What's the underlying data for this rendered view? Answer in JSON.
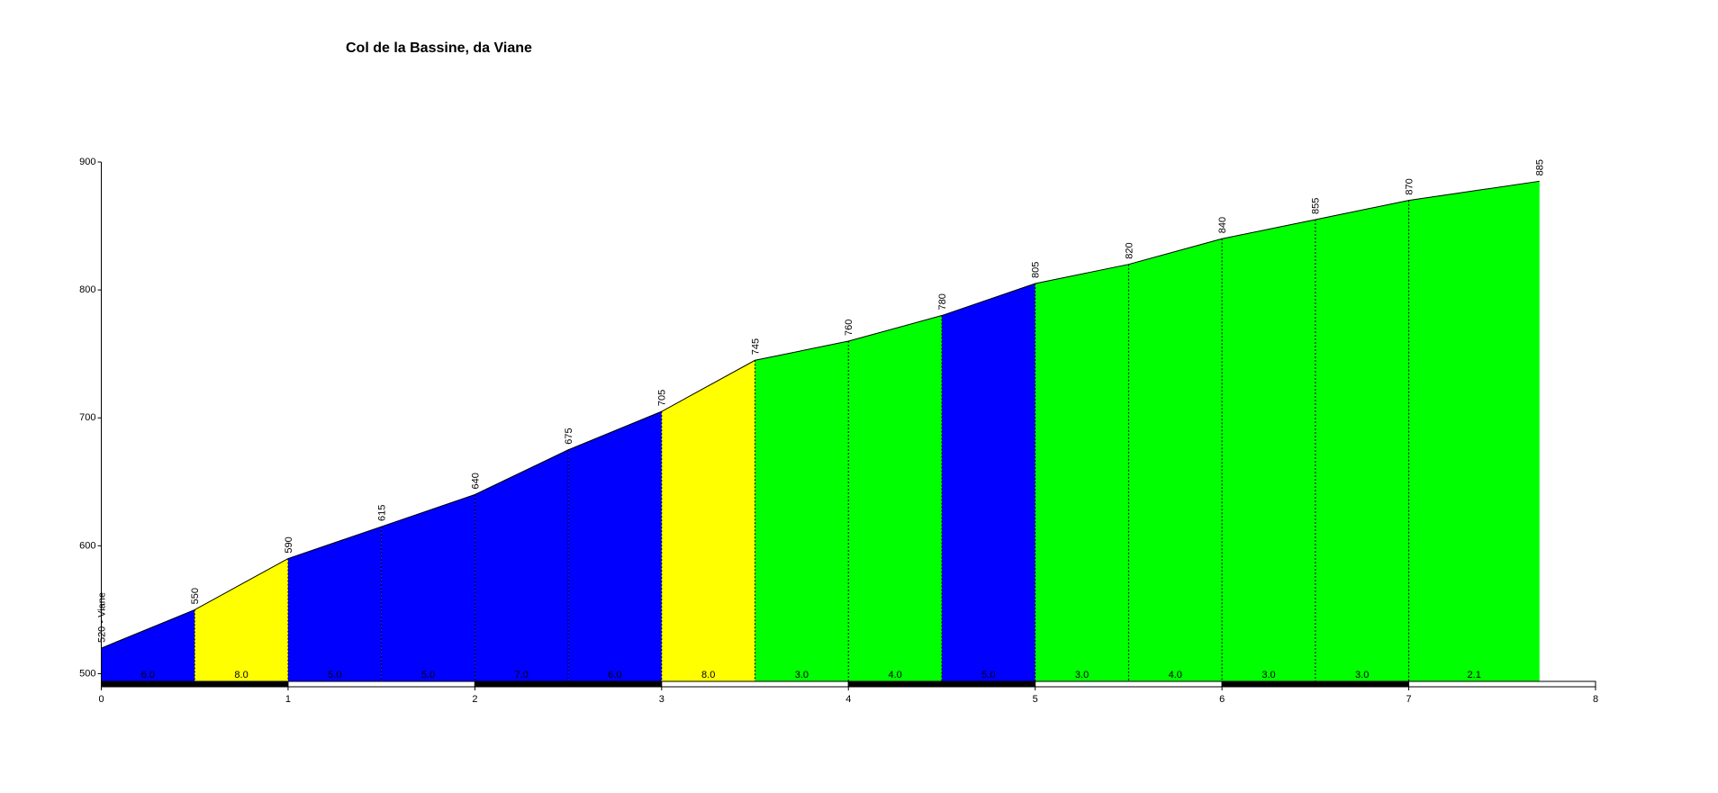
{
  "chart_data": {
    "type": "climb-profile",
    "title": "Col de la Bassine, da Viane",
    "x": [
      0,
      0.5,
      1,
      1.5,
      2,
      2.5,
      3,
      3.5,
      4,
      4.5,
      5,
      5.5,
      6,
      6.5,
      7,
      7.7
    ],
    "values": [
      520,
      550,
      590,
      615,
      640,
      675,
      705,
      745,
      760,
      780,
      805,
      820,
      840,
      855,
      870,
      885
    ],
    "value_labels": [
      "520 - Viane",
      "550",
      "590",
      "615",
      "640",
      "675",
      "705",
      "745",
      "760",
      "780",
      "805",
      "820",
      "840",
      "855",
      "870",
      "885"
    ],
    "segments": [
      {
        "value": 6,
        "label": "6.0",
        "color": "#0000ff"
      },
      {
        "value": 8,
        "label": "8.0",
        "color": "#ffff00"
      },
      {
        "value": 5,
        "label": "5.0",
        "color": "#0000ff"
      },
      {
        "value": 5,
        "label": "5.0",
        "color": "#0000ff"
      },
      {
        "value": 7,
        "label": "7.0",
        "color": "#0000ff"
      },
      {
        "value": 6,
        "label": "6.0",
        "color": "#0000ff"
      },
      {
        "value": 8,
        "label": "8.0",
        "color": "#ffff00"
      },
      {
        "value": 3,
        "label": "3.0",
        "color": "#00ff00"
      },
      {
        "value": 4,
        "label": "4.0",
        "color": "#00ff00"
      },
      {
        "value": 5,
        "label": "5.0",
        "color": "#0000ff"
      },
      {
        "value": 3,
        "label": "3.0",
        "color": "#00ff00"
      },
      {
        "value": 4,
        "label": "4.0",
        "color": "#00ff00"
      },
      {
        "value": 3,
        "label": "3.0",
        "color": "#00ff00"
      },
      {
        "value": 3,
        "label": "3.0",
        "color": "#00ff00"
      },
      {
        "value": 2.1,
        "label": "2.1",
        "color": "#00ff00"
      }
    ],
    "xlim": [
      0,
      8
    ],
    "xticks": [
      0,
      1,
      2,
      3,
      4,
      5,
      6,
      7,
      8
    ],
    "ylim": [
      494,
      900
    ],
    "yticks": [
      500,
      600,
      700,
      800,
      900
    ]
  }
}
